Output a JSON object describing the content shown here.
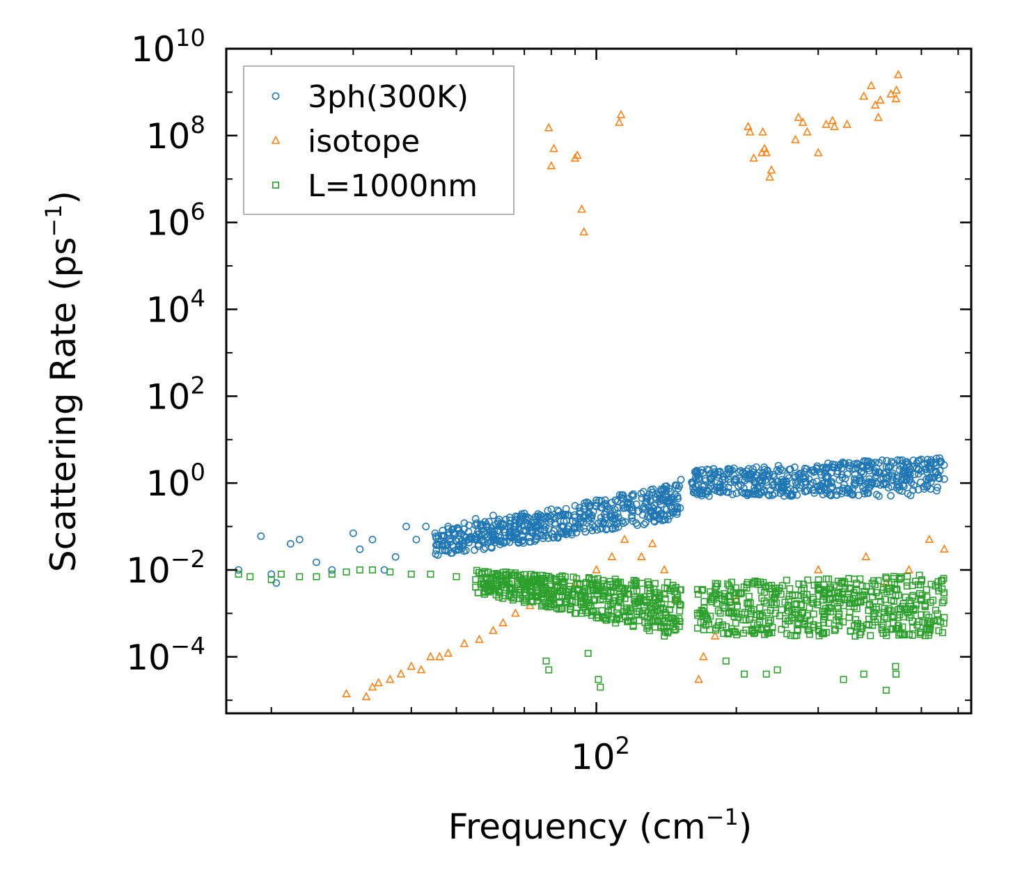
{
  "chart_data": {
    "type": "scatter",
    "title": "",
    "xlabel": "Frequency (cm",
    "xlabel_sup": "−1",
    "xlabel_end": ")",
    "ylabel": "Scattering Rate (ps",
    "ylabel_sup": "−1",
    "ylabel_end": ")",
    "xscale": "log",
    "yscale": "log",
    "xlim": [
      16,
      640
    ],
    "ylim": [
      5e-06,
      10000000000.0
    ],
    "x_major_ticks": [
      {
        "base": "10",
        "exp": "2"
      }
    ],
    "y_major_ticks": [
      {
        "base": "10",
        "exp": "−4",
        "value": -4
      },
      {
        "base": "10",
        "exp": "−2",
        "value": -2
      },
      {
        "base": "10",
        "exp": "0",
        "value": 0
      },
      {
        "base": "10",
        "exp": "2",
        "value": 2
      },
      {
        "base": "10",
        "exp": "4",
        "value": 4
      },
      {
        "base": "10",
        "exp": "6",
        "value": 6
      },
      {
        "base": "10",
        "exp": "8",
        "value": 8
      },
      {
        "base": "10",
        "exp": "10",
        "value": 10
      }
    ],
    "legend_position": "top-left",
    "series": [
      {
        "name": "3ph(300K)",
        "marker": "circle",
        "color": "#1f77b4",
        "points": [
          [
            17,
            0.01
          ],
          [
            19,
            0.06
          ],
          [
            20,
            0.008
          ],
          [
            20.5,
            0.005
          ],
          [
            22,
            0.04
          ],
          [
            23,
            0.05
          ],
          [
            25,
            0.015
          ],
          [
            27,
            0.01
          ],
          [
            30,
            0.07
          ],
          [
            31,
            0.03
          ],
          [
            33,
            0.05
          ],
          [
            35,
            0.01
          ],
          [
            37,
            0.02
          ],
          [
            39,
            0.1
          ],
          [
            41,
            0.05
          ],
          [
            43,
            0.1
          ],
          [
            45,
            0.07
          ],
          [
            48,
            0.1
          ],
          [
            52,
            0.12
          ],
          [
            55,
            0.15
          ],
          [
            60,
            0.18
          ],
          [
            70,
            0.2
          ],
          [
            80,
            0.25
          ],
          [
            90,
            0.3
          ],
          [
            100,
            0.35
          ],
          [
            110,
            0.4
          ],
          [
            120,
            0.5
          ],
          [
            130,
            0.55
          ],
          [
            140,
            0.7
          ],
          [
            148,
            0.9
          ],
          [
            152,
            1.2
          ],
          [
            165,
            1.5
          ],
          [
            180,
            1.8
          ],
          [
            200,
            1.2
          ],
          [
            220,
            0.7
          ],
          [
            250,
            0.8
          ],
          [
            280,
            1.3
          ],
          [
            320,
            1.0
          ],
          [
            360,
            0.9
          ],
          [
            400,
            1.5
          ],
          [
            450,
            2.5
          ],
          [
            500,
            3.5
          ],
          [
            550,
            3.0
          ]
        ],
        "bands": [
          {
            "x": [
              45,
              152
            ],
            "y_low": [
              0.02,
              0.15
            ],
            "y_high": [
              0.08,
              1.0
            ]
          },
          {
            "x": [
              160,
              560
            ],
            "y_low": [
              0.5,
              0.5
            ],
            "y_high": [
              2.0,
              4.0
            ]
          }
        ]
      },
      {
        "name": "isotope",
        "marker": "triangle",
        "color": "#ff7f0e",
        "points": [
          [
            29,
            1.4e-05
          ],
          [
            32,
            1.2e-05
          ],
          [
            33,
            2e-05
          ],
          [
            34,
            2.5e-05
          ],
          [
            36,
            3e-05
          ],
          [
            38,
            4e-05
          ],
          [
            40,
            6e-05
          ],
          [
            42,
            5e-05
          ],
          [
            44,
            0.0001
          ],
          [
            46,
            0.0001
          ],
          [
            48,
            0.00012
          ],
          [
            52,
            0.0002
          ],
          [
            56,
            0.00025
          ],
          [
            60,
            0.0004
          ],
          [
            63,
            0.0006
          ],
          [
            67,
            0.001
          ],
          [
            72,
            0.0015
          ],
          [
            80,
            0.003
          ],
          [
            90,
            0.005
          ],
          [
            100,
            0.01
          ],
          [
            108,
            0.02
          ],
          [
            115,
            0.05
          ],
          [
            125,
            0.02
          ],
          [
            132,
            0.04
          ],
          [
            140,
            0.01
          ],
          [
            148,
            0.002
          ],
          [
            166,
            3e-05
          ],
          [
            170,
            0.0001
          ],
          [
            180,
            0.0003
          ],
          [
            200,
            0.002
          ],
          [
            300,
            0.01
          ],
          [
            380,
            0.02
          ],
          [
            420,
            0.005
          ],
          [
            470,
            0.01
          ],
          [
            520,
            0.05
          ],
          [
            560,
            0.03
          ],
          [
            79,
            150000000.0
          ],
          [
            80,
            20000000.0
          ],
          [
            81,
            50000000.0
          ],
          [
            90,
            30000000.0
          ],
          [
            91,
            35000000.0
          ],
          [
            93,
            2000000.0
          ],
          [
            94,
            600000.0
          ],
          [
            112,
            200000000.0
          ],
          [
            113,
            300000000.0
          ],
          [
            212,
            160000000.0
          ],
          [
            214,
            120000000.0
          ],
          [
            218,
            30000000.0
          ],
          [
            227,
            40000000.0
          ],
          [
            228,
            120000000.0
          ],
          [
            230,
            50000000.0
          ],
          [
            232,
            40000000.0
          ],
          [
            236,
            11000000.0
          ],
          [
            238,
            16000000.0
          ],
          [
            268,
            80000000.0
          ],
          [
            272,
            260000000.0
          ],
          [
            278,
            200000000.0
          ],
          [
            284,
            120000000.0
          ],
          [
            300,
            40000000.0
          ],
          [
            312,
            180000000.0
          ],
          [
            322,
            220000000.0
          ],
          [
            325,
            160000000.0
          ],
          [
            346,
            180000000.0
          ],
          [
            376,
            800000000.0
          ],
          [
            390,
            1400000000.0
          ],
          [
            398,
            500000000.0
          ],
          [
            404,
            260000000.0
          ],
          [
            408,
            650000000.0
          ],
          [
            430,
            900000000.0
          ],
          [
            441,
            700000000.0
          ],
          [
            442,
            1100000000.0
          ],
          [
            446,
            2500000000.0
          ]
        ]
      },
      {
        "name": "L=1000nm",
        "marker": "square",
        "color": "#2ca02c",
        "points": [
          [
            17,
            0.008
          ],
          [
            18,
            0.007
          ],
          [
            20,
            0.006
          ],
          [
            21,
            0.008
          ],
          [
            23,
            0.007
          ],
          [
            25,
            0.007
          ],
          [
            27,
            0.008
          ],
          [
            29,
            0.009
          ],
          [
            31,
            0.01
          ],
          [
            33,
            0.01
          ],
          [
            36,
            0.009
          ],
          [
            40,
            0.008
          ],
          [
            44,
            0.008
          ],
          [
            50,
            0.007
          ],
          [
            55,
            0.006
          ],
          [
            60,
            0.005
          ],
          [
            65,
            0.004
          ],
          [
            70,
            0.003
          ],
          [
            80,
            0.002
          ],
          [
            90,
            0.001
          ],
          [
            100,
            0.0008
          ],
          [
            110,
            0.0006
          ],
          [
            120,
            0.0005
          ],
          [
            130,
            0.0004
          ],
          [
            140,
            0.0003
          ],
          [
            148,
            0.0007
          ],
          [
            165,
            0.001
          ],
          [
            200,
            0.003
          ],
          [
            300,
            0.004
          ],
          [
            400,
            0.003
          ],
          [
            500,
            0.002
          ],
          [
            560,
            0.0008
          ],
          [
            78,
            8e-05
          ],
          [
            79,
            5e-05
          ],
          [
            96,
            0.00012
          ],
          [
            101,
            3e-05
          ],
          [
            102,
            2e-05
          ],
          [
            190,
            8e-05
          ],
          [
            208,
            4e-05
          ],
          [
            232,
            4e-05
          ],
          [
            245,
            5e-05
          ],
          [
            340,
            3e-05
          ],
          [
            376,
            4e-05
          ],
          [
            420,
            1.7e-05
          ],
          [
            440,
            6e-05
          ],
          [
            441,
            4e-05
          ]
        ],
        "bands": [
          {
            "x": [
              55,
              152
            ],
            "y_low": [
              0.003,
              0.0003
            ],
            "y_high": [
              0.01,
              0.005
            ]
          },
          {
            "x": [
              165,
              560
            ],
            "y_low": [
              0.0003,
              0.0003
            ],
            "y_high": [
              0.005,
              0.008
            ]
          }
        ]
      }
    ]
  }
}
